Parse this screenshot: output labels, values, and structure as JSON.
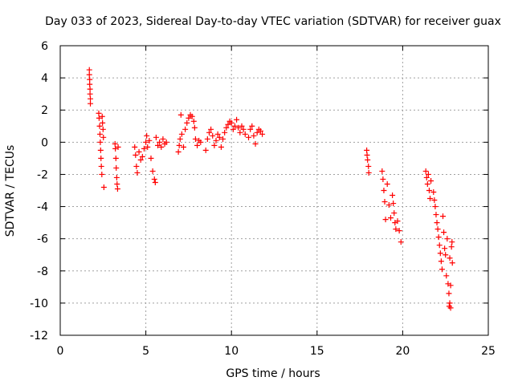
{
  "chart_data": {
    "type": "scatter",
    "title": "Day 033 of 2023, Sidereal Day-to-day VTEC variation (SDTVAR) for receiver guax",
    "xlabel": "GPS time / hours",
    "ylabel": "SDTVAR / TECUs",
    "xlim": [
      0,
      25
    ],
    "ylim": [
      -12,
      6
    ],
    "xticks": [
      0,
      5,
      10,
      15,
      20,
      25
    ],
    "yticks": [
      6,
      4,
      2,
      0,
      -2,
      -4,
      -6,
      -8,
      -10,
      -12
    ],
    "grid": true,
    "marker": "+",
    "color": "#ff0000",
    "series": [
      {
        "name": "guax",
        "points": [
          [
            1.7,
            4.5
          ],
          [
            1.7,
            4.2
          ],
          [
            1.72,
            3.9
          ],
          [
            1.72,
            3.6
          ],
          [
            1.74,
            3.3
          ],
          [
            1.74,
            3.0
          ],
          [
            1.76,
            2.7
          ],
          [
            1.76,
            2.4
          ],
          [
            2.25,
            1.8
          ],
          [
            2.27,
            1.5
          ],
          [
            2.3,
            1.0
          ],
          [
            2.32,
            0.5
          ],
          [
            2.34,
            0.0
          ],
          [
            2.36,
            -0.5
          ],
          [
            2.38,
            -1.0
          ],
          [
            2.4,
            -1.5
          ],
          [
            2.43,
            -2.0
          ],
          [
            2.45,
            1.6
          ],
          [
            2.47,
            1.2
          ],
          [
            2.5,
            0.8
          ],
          [
            2.52,
            0.3
          ],
          [
            2.55,
            -2.8
          ],
          [
            3.2,
            -0.1
          ],
          [
            3.22,
            -0.4
          ],
          [
            3.25,
            -1.0
          ],
          [
            3.27,
            -1.6
          ],
          [
            3.3,
            -2.2
          ],
          [
            3.32,
            -2.6
          ],
          [
            3.35,
            -2.9
          ],
          [
            3.38,
            -0.3
          ],
          [
            4.35,
            -0.3
          ],
          [
            4.4,
            -0.8
          ],
          [
            4.45,
            -1.5
          ],
          [
            4.5,
            -1.9
          ],
          [
            4.6,
            -0.6
          ],
          [
            4.7,
            -1.1
          ],
          [
            4.8,
            -0.9
          ],
          [
            4.9,
            -0.4
          ],
          [
            5.0,
            0.0
          ],
          [
            5.05,
            0.4
          ],
          [
            5.1,
            -0.3
          ],
          [
            5.2,
            0.1
          ],
          [
            5.3,
            -1.0
          ],
          [
            5.4,
            -1.8
          ],
          [
            5.5,
            -2.3
          ],
          [
            5.55,
            -2.5
          ],
          [
            5.6,
            0.3
          ],
          [
            5.7,
            -0.2
          ],
          [
            5.8,
            0.0
          ],
          [
            5.9,
            -0.3
          ],
          [
            6.0,
            0.2
          ],
          [
            6.1,
            -0.1
          ],
          [
            6.2,
            0.0
          ],
          [
            6.9,
            -0.6
          ],
          [
            6.95,
            -0.2
          ],
          [
            7.0,
            0.2
          ],
          [
            7.05,
            1.7
          ],
          [
            7.1,
            0.5
          ],
          [
            7.2,
            -0.3
          ],
          [
            7.3,
            0.8
          ],
          [
            7.4,
            1.2
          ],
          [
            7.5,
            1.5
          ],
          [
            7.6,
            1.7
          ],
          [
            7.7,
            1.6
          ],
          [
            7.8,
            1.3
          ],
          [
            7.85,
            0.9
          ],
          [
            7.9,
            0.2
          ],
          [
            8.0,
            -0.2
          ],
          [
            8.1,
            0.1
          ],
          [
            8.2,
            0.0
          ],
          [
            8.5,
            -0.5
          ],
          [
            8.6,
            0.2
          ],
          [
            8.7,
            0.6
          ],
          [
            8.8,
            0.8
          ],
          [
            8.9,
            0.4
          ],
          [
            9.0,
            -0.2
          ],
          [
            9.1,
            0.1
          ],
          [
            9.2,
            0.5
          ],
          [
            9.3,
            0.3
          ],
          [
            9.4,
            -0.3
          ],
          [
            9.5,
            0.2
          ],
          [
            9.6,
            0.6
          ],
          [
            9.7,
            0.9
          ],
          [
            9.8,
            1.1
          ],
          [
            9.9,
            1.3
          ],
          [
            10.0,
            1.2
          ],
          [
            10.1,
            0.8
          ],
          [
            10.2,
            1.0
          ],
          [
            10.3,
            1.4
          ],
          [
            10.4,
            0.9
          ],
          [
            10.5,
            0.6
          ],
          [
            10.6,
            1.0
          ],
          [
            10.7,
            0.8
          ],
          [
            10.8,
            0.5
          ],
          [
            11.0,
            0.3
          ],
          [
            11.1,
            0.8
          ],
          [
            11.2,
            1.0
          ],
          [
            11.3,
            0.4
          ],
          [
            11.4,
            -0.1
          ],
          [
            11.5,
            0.6
          ],
          [
            11.6,
            0.8
          ],
          [
            11.7,
            0.7
          ],
          [
            11.8,
            0.5
          ],
          [
            17.9,
            -0.5
          ],
          [
            17.92,
            -0.8
          ],
          [
            17.95,
            -1.1
          ],
          [
            18.0,
            -1.5
          ],
          [
            18.02,
            -1.9
          ],
          [
            18.8,
            -1.8
          ],
          [
            18.85,
            -2.3
          ],
          [
            18.9,
            -3.0
          ],
          [
            18.95,
            -3.7
          ],
          [
            19.0,
            -4.8
          ],
          [
            19.1,
            -2.6
          ],
          [
            19.2,
            -3.9
          ],
          [
            19.3,
            -4.7
          ],
          [
            19.4,
            -3.3
          ],
          [
            19.45,
            -3.8
          ],
          [
            19.5,
            -4.4
          ],
          [
            19.55,
            -5.0
          ],
          [
            19.6,
            -5.4
          ],
          [
            19.7,
            -4.9
          ],
          [
            19.8,
            -5.5
          ],
          [
            19.9,
            -6.2
          ],
          [
            21.35,
            -1.8
          ],
          [
            21.4,
            -2.2
          ],
          [
            21.45,
            -2.6
          ],
          [
            21.5,
            -2.0
          ],
          [
            21.55,
            -3.0
          ],
          [
            21.6,
            -3.5
          ],
          [
            21.65,
            -2.4
          ],
          [
            21.8,
            -3.1
          ],
          [
            21.85,
            -3.6
          ],
          [
            21.9,
            -4.0
          ],
          [
            21.95,
            -4.5
          ],
          [
            22.0,
            -5.0
          ],
          [
            22.05,
            -5.4
          ],
          [
            22.1,
            -5.9
          ],
          [
            22.15,
            -6.4
          ],
          [
            22.2,
            -6.9
          ],
          [
            22.25,
            -7.4
          ],
          [
            22.3,
            -7.9
          ],
          [
            22.35,
            -4.6
          ],
          [
            22.4,
            -5.6
          ],
          [
            22.45,
            -6.6
          ],
          [
            22.5,
            -7.0
          ],
          [
            22.55,
            -8.3
          ],
          [
            22.6,
            -6.0
          ],
          [
            22.65,
            -8.8
          ],
          [
            22.7,
            -9.4
          ],
          [
            22.72,
            -10.2
          ],
          [
            22.75,
            -7.2
          ],
          [
            22.8,
            -8.9
          ],
          [
            22.85,
            -6.5
          ],
          [
            22.88,
            -6.2
          ],
          [
            22.9,
            -7.5
          ],
          [
            22.75,
            -10.0
          ],
          [
            22.8,
            -10.3
          ]
        ]
      }
    ]
  }
}
